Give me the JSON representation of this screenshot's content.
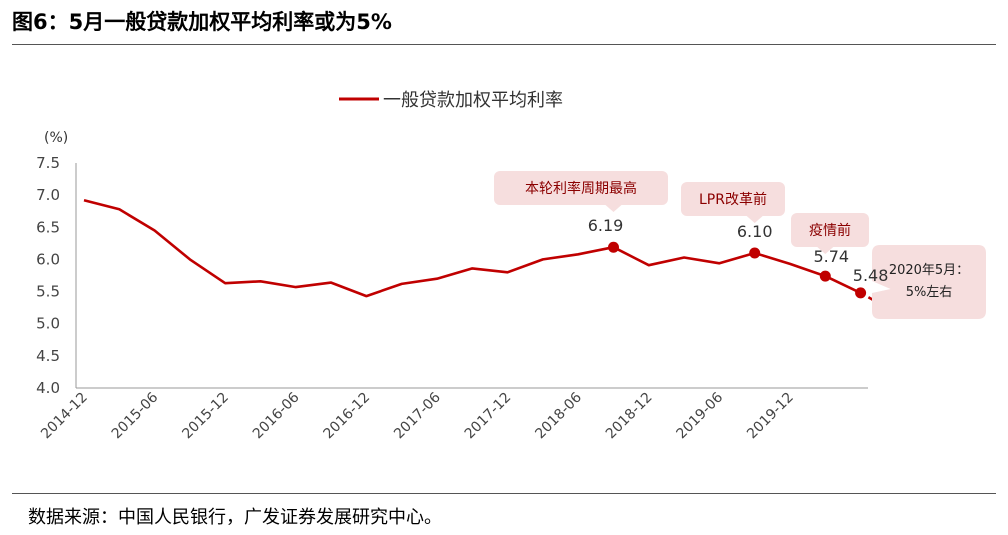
{
  "title": "图6：5月一般贷款加权平均利率或为5%",
  "source": "数据来源：中国人民银行，广发证券发展研究中心。",
  "colors": {
    "series": "#c00000",
    "callout_fill": "#f6dede",
    "callout_text": "#8b0000",
    "axis": "#999999"
  },
  "chart_data": {
    "type": "line",
    "ylabel": "(%)",
    "ylim": [
      4.0,
      7.5
    ],
    "yticks": [
      4.0,
      4.5,
      5.0,
      5.5,
      6.0,
      6.5,
      7.0,
      7.5
    ],
    "ytick_labels": [
      "4.0",
      "4.5",
      "5.0",
      "5.5",
      "6.0",
      "6.5",
      "7.0",
      "7.5"
    ],
    "xtick_labels": [
      "2014-12",
      "2015-06",
      "2015-12",
      "2016-06",
      "2016-12",
      "2017-06",
      "2017-12",
      "2018-06",
      "2018-12",
      "2019-06",
      "2019-12"
    ],
    "x_start": "2014-12",
    "step_months": 3,
    "series": [
      {
        "name": "一般贷款加权平均利率",
        "values": [
          6.92,
          6.78,
          6.45,
          6.0,
          5.63,
          5.66,
          5.57,
          5.64,
          5.43,
          5.62,
          5.7,
          5.86,
          5.8,
          6.0,
          6.08,
          6.19,
          5.91,
          6.03,
          5.94,
          6.1,
          5.93,
          5.74,
          5.48
        ]
      }
    ],
    "projection": {
      "from_index": 22,
      "to_value": 5.25
    },
    "point_labels": [
      {
        "index": 15,
        "text": "6.19"
      },
      {
        "index": 19,
        "text": "6.10"
      },
      {
        "index": 21,
        "text": "5.74"
      },
      {
        "index": 22,
        "text": "5.48"
      }
    ],
    "annotations": [
      {
        "index": 15,
        "text": "本轮利率周期最高"
      },
      {
        "index": 19,
        "text": "LPR改革前"
      },
      {
        "index": 21,
        "text": "疫情前"
      },
      {
        "index": 22,
        "text": "2020年5月：5%左右"
      }
    ]
  }
}
